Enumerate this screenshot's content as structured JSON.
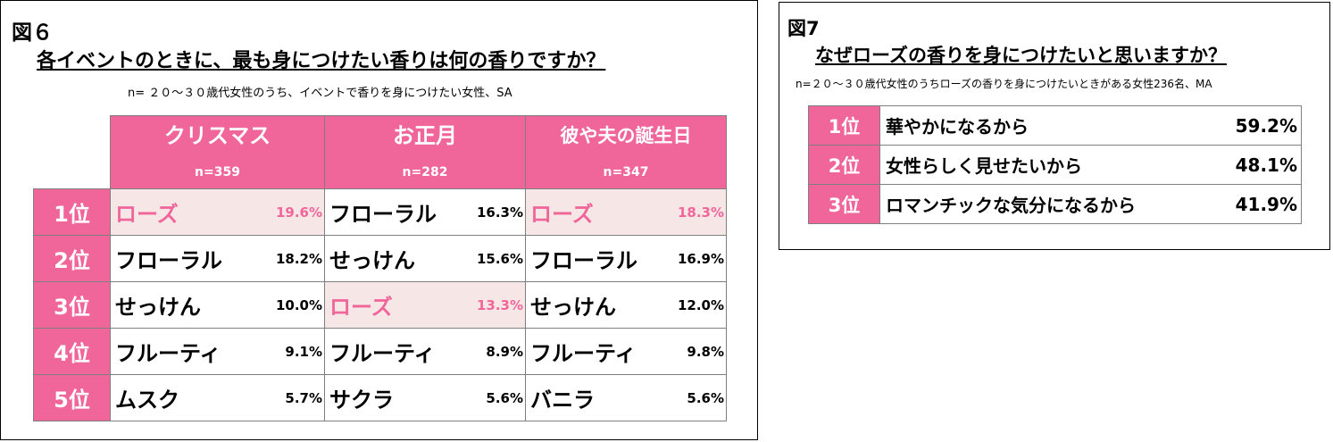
{
  "fig6": {
    "label": "図６",
    "title": "各イベントのときに、最も身につけたい香りは何の香りですか？",
    "subtitle": "n= ２０～３０歳代女性のうち、イベントで香りを身につけたい女性、SA",
    "columns": [
      {
        "name": "クリスマス",
        "n": "n=359"
      },
      {
        "name": "お正月",
        "n": "n=282"
      },
      {
        "name": "彼や夫の誕生日",
        "n": "n=347"
      }
    ],
    "ranks": [
      "1位",
      "2位",
      "3位",
      "4位",
      "5位"
    ],
    "rows": [
      [
        {
          "name": "ローズ",
          "pct": "19.6%"
        },
        {
          "name": "フローラル",
          "pct": "16.3%"
        },
        {
          "name": "ローズ",
          "pct": "18.3%"
        }
      ],
      [
        {
          "name": "フローラル",
          "pct": "18.2%"
        },
        {
          "name": "せっけん",
          "pct": "15.6%"
        },
        {
          "name": "フローラル",
          "pct": "16.9%"
        }
      ],
      [
        {
          "name": "せっけん",
          "pct": "10.0%"
        },
        {
          "name": "ローズ",
          "pct": "13.3%"
        },
        {
          "name": "せっけん",
          "pct": "12.0%"
        }
      ],
      [
        {
          "name": "フルーティ",
          "pct": "9.1%"
        },
        {
          "name": "フルーティ",
          "pct": "8.9%"
        },
        {
          "name": "フルーティ",
          "pct": "9.8%"
        }
      ],
      [
        {
          "name": "ムスク",
          "pct": "5.7%"
        },
        {
          "name": "サクラ",
          "pct": "5.6%"
        },
        {
          "name": "バニラ",
          "pct": "5.6%"
        }
      ]
    ]
  },
  "fig7": {
    "label": "図7",
    "title": "なぜローズの香りを身につけたいと思いますか？",
    "subtitle": "n=２０～３０歳代女性のうちローズの香りを身につけたいときがある女性236名、MA",
    "rows": [
      {
        "rank": "1位",
        "reason": "華やかになるから",
        "pct": "59.2%"
      },
      {
        "rank": "2位",
        "reason": "女性らしく見せたいから",
        "pct": "48.1%"
      },
      {
        "rank": "3位",
        "reason": "ロマンチックな気分になるから",
        "pct": "41.9%"
      }
    ]
  },
  "colors": {
    "accent": "#f0669a",
    "highlight_bg": "#f6e6e6",
    "highlight_text": "#f0669a"
  },
  "chart_data": [
    {
      "type": "table",
      "title": "各イベントのときに、最も身につけたい香りは何の香りですか？",
      "categories": [
        "クリスマス",
        "お正月",
        "彼や夫の誕生日"
      ],
      "series": [
        {
          "name": "クリスマス",
          "values": [
            [
              "ローズ",
              19.6
            ],
            [
              "フローラル",
              18.2
            ],
            [
              "せっけん",
              10.0
            ],
            [
              "フルーティ",
              9.1
            ],
            [
              "ムスク",
              5.7
            ]
          ]
        },
        {
          "name": "お正月",
          "values": [
            [
              "フローラル",
              16.3
            ],
            [
              "せっけん",
              15.6
            ],
            [
              "ローズ",
              13.3
            ],
            [
              "フルーティ",
              8.9
            ],
            [
              "サクラ",
              5.6
            ]
          ]
        },
        {
          "name": "彼や夫の誕生日",
          "values": [
            [
              "ローズ",
              18.3
            ],
            [
              "フローラル",
              16.9
            ],
            [
              "せっけん",
              12.0
            ],
            [
              "フルーティ",
              9.8
            ],
            [
              "バニラ",
              5.6
            ]
          ]
        }
      ]
    },
    {
      "type": "table",
      "title": "なぜローズの香りを身につけたいと思いますか？",
      "categories": [
        "華やかになるから",
        "女性らしく見せたいから",
        "ロマンチックな気分になるから"
      ],
      "values": [
        59.2,
        48.1,
        41.9
      ]
    }
  ]
}
